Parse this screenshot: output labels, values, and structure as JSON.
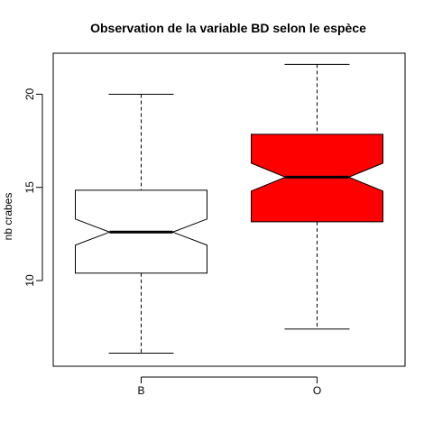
{
  "chart_data": {
    "type": "boxplot",
    "title": "Observation de la variable BD selon le espèce",
    "xlabel": "",
    "ylabel": "nb crabes",
    "ylim": [
      5.4,
      22.2
    ],
    "yticks": [
      10,
      15,
      20
    ],
    "notch": true,
    "grid": false,
    "legend": "none",
    "categories": [
      "B",
      "O"
    ],
    "boxes": [
      {
        "category": "B",
        "whisker_low": 6.1,
        "q1": 10.4,
        "median": 12.6,
        "q3": 14.85,
        "whisker_high": 20.0,
        "notch_low": 11.9,
        "notch_high": 13.3,
        "fill": "#ffffff"
      },
      {
        "category": "O",
        "whisker_low": 7.4,
        "q1": 13.15,
        "median": 15.55,
        "q3": 17.85,
        "whisker_high": 21.6,
        "notch_low": 14.8,
        "notch_high": 16.3,
        "fill": "#ff0000"
      }
    ]
  }
}
